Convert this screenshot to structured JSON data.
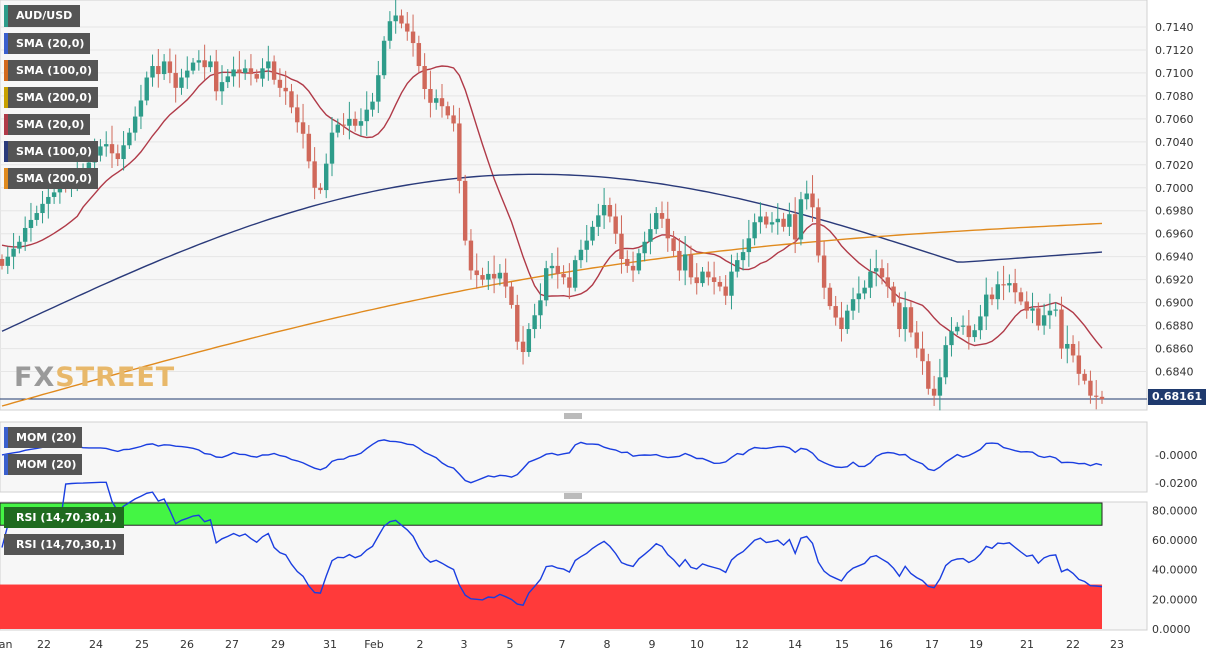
{
  "pair_label": "AUD/USD",
  "current_price_label": "0.68161",
  "logo": {
    "fx": "FX",
    "street": "STREET"
  },
  "legends": {
    "price": [
      {
        "label": "SMA (20,0)",
        "color": "#3a5fcd"
      },
      {
        "label": "SMA (100,0)",
        "color": "#d2691e"
      },
      {
        "label": "SMA (200,0)",
        "color": "#c8a000"
      },
      {
        "label": "SMA (20,0)",
        "color": "#b03a48"
      },
      {
        "label": "SMA (100,0)",
        "color": "#2a3a7a"
      },
      {
        "label": "SMA (200,0)",
        "color": "#e08a1e"
      }
    ],
    "mom": [
      {
        "label": "MOM (20)",
        "color": "#3a5fcd"
      },
      {
        "label": "MOM (20)",
        "color": "#3a5fcd"
      }
    ],
    "rsi": [
      {
        "label": "RSI (14,70,30,1)",
        "bg": "#1f6b1f"
      },
      {
        "label": "RSI (14,70,30,1)",
        "bg": "#555555"
      }
    ]
  },
  "colors": {
    "bull": "#2e9c8a",
    "bear": "#d0685a",
    "sma20": "#b03a48",
    "sma100": "#2a3a7a",
    "sma200": "#e08a1e",
    "mom": "#1a3ee0",
    "rsi": "#1a3ee0",
    "rsi_overbought": "#44f544",
    "rsi_oversold": "#ff3a3a"
  },
  "chart_data": [
    {
      "type": "candlestick",
      "title": "AUD/USD",
      "ylim": [
        0.681,
        0.716
      ],
      "yticks": [
        "0.7140",
        "0.7120",
        "0.7100",
        "0.7080",
        "0.7060",
        "0.7040",
        "0.7020",
        "0.7000",
        "0.6980",
        "0.6960",
        "0.6940",
        "0.6920",
        "0.6900",
        "0.6880",
        "0.6860",
        "0.6840"
      ],
      "x_labels": [
        "Jan",
        "22",
        "24",
        "25",
        "26",
        "27",
        "29",
        "31",
        "Feb",
        "2",
        "3",
        "5",
        "7",
        "8",
        "9",
        "10",
        "12",
        "14",
        "15",
        "16",
        "17",
        "19",
        "21",
        "22",
        "23"
      ],
      "current_price": 0.68161,
      "close": [
        0.6932,
        0.694,
        0.6947,
        0.6953,
        0.6965,
        0.6972,
        0.6978,
        0.6986,
        0.6992,
        0.6996,
        0.7,
        0.6999,
        0.7008,
        0.7012,
        0.7016,
        0.7022,
        0.7028,
        0.7036,
        0.7038,
        0.703,
        0.7025,
        0.7037,
        0.7048,
        0.7062,
        0.7076,
        0.7096,
        0.7106,
        0.7099,
        0.711,
        0.71,
        0.7087,
        0.7096,
        0.7102,
        0.7109,
        0.7111,
        0.7105,
        0.711,
        0.7084,
        0.7092,
        0.7097,
        0.7103,
        0.71,
        0.7104,
        0.7099,
        0.7095,
        0.7104,
        0.711,
        0.7094,
        0.7087,
        0.7084,
        0.707,
        0.7057,
        0.7047,
        0.7023,
        0.7,
        0.6998,
        0.7021,
        0.7048,
        0.7055,
        0.7054,
        0.706,
        0.7054,
        0.7058,
        0.7068,
        0.7075,
        0.7098,
        0.7128,
        0.7145,
        0.715,
        0.7143,
        0.7136,
        0.7126,
        0.7106,
        0.7086,
        0.7074,
        0.7078,
        0.7071,
        0.7063,
        0.7056,
        0.7006,
        0.6954,
        0.6928,
        0.6924,
        0.692,
        0.6925,
        0.6921,
        0.6926,
        0.6914,
        0.6898,
        0.6866,
        0.6857,
        0.6877,
        0.6889,
        0.6902,
        0.693,
        0.6932,
        0.6925,
        0.6922,
        0.6913,
        0.6937,
        0.6946,
        0.6954,
        0.6966,
        0.6976,
        0.6985,
        0.6975,
        0.696,
        0.6938,
        0.6932,
        0.6928,
        0.6943,
        0.6953,
        0.6964,
        0.6978,
        0.6973,
        0.6956,
        0.6945,
        0.6928,
        0.6942,
        0.6922,
        0.6917,
        0.6927,
        0.6922,
        0.6918,
        0.6914,
        0.6906,
        0.6927,
        0.6937,
        0.6944,
        0.6956,
        0.697,
        0.6975,
        0.6968,
        0.697,
        0.6973,
        0.6966,
        0.6977,
        0.6955,
        0.699,
        0.6995,
        0.6983,
        0.6941,
        0.6913,
        0.6897,
        0.6887,
        0.6877,
        0.6893,
        0.6903,
        0.6908,
        0.6913,
        0.6927,
        0.693,
        0.6922,
        0.6914,
        0.69,
        0.6877,
        0.6896,
        0.6874,
        0.686,
        0.6849,
        0.6825,
        0.6819,
        0.6835,
        0.6863,
        0.6875,
        0.6879,
        0.688,
        0.687,
        0.6876,
        0.6888,
        0.6907,
        0.6903,
        0.6916,
        0.6915,
        0.6917,
        0.6909,
        0.6901,
        0.6893,
        0.6895,
        0.688,
        0.6889,
        0.6893,
        0.6894,
        0.686,
        0.6864,
        0.6854,
        0.6838,
        0.6832,
        0.6819,
        0.6818,
        0.6816
      ],
      "sma20_ends": [
        0.695,
        0.6874
      ],
      "sma100_ends": [
        0.6875,
        0.6944
      ],
      "sma200_ends": [
        0.681,
        0.6969
      ]
    },
    {
      "type": "line",
      "title": "MOM (20)",
      "yticks": [
        "-0.0000",
        "-0.0200"
      ],
      "ylim": [
        -0.025,
        0.022
      ]
    },
    {
      "type": "line",
      "title": "RSI (14,70,30,1)",
      "yticks": [
        "80.0000",
        "60.0000",
        "40.0000",
        "20.0000",
        "0.0000"
      ],
      "ylim": [
        0,
        85
      ],
      "overbought": 70,
      "oversold": 30
    }
  ]
}
